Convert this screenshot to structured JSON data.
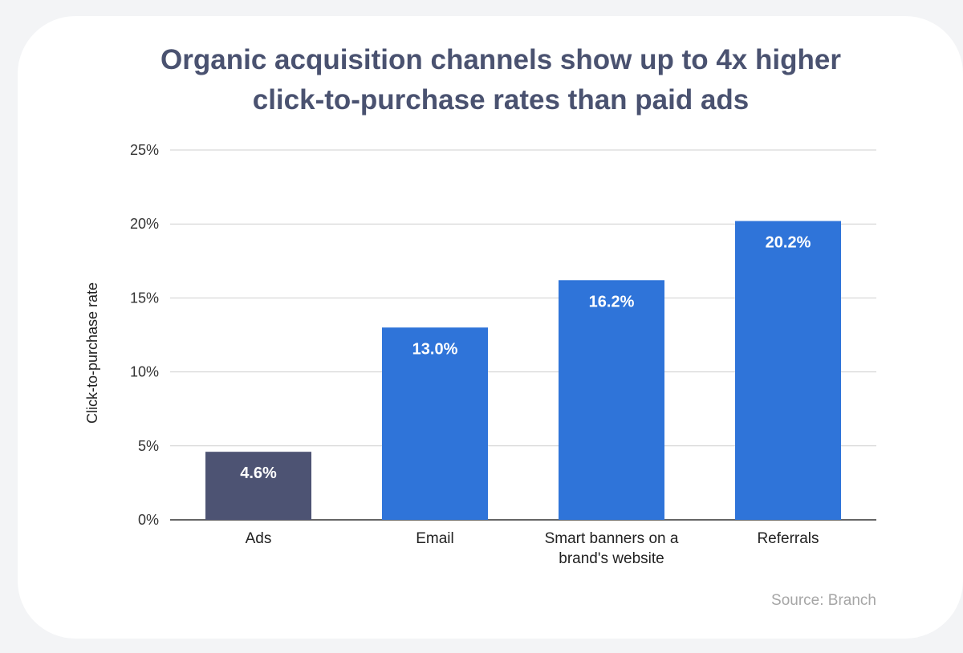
{
  "chart_data": {
    "type": "bar",
    "title_parts": [
      "Organic acquisition channels show up to ",
      "4x higher",
      "click-to-purchase rates than paid ads"
    ],
    "categories": [
      [
        "Ads"
      ],
      [
        "Email"
      ],
      [
        "Smart banners on a",
        "brand's website"
      ],
      [
        "Referrals"
      ]
    ],
    "values": [
      4.6,
      13.0,
      16.2,
      20.2
    ],
    "data_labels": [
      "4.6%",
      "13.0%",
      "16.2%",
      "20.2%"
    ],
    "bar_colors": [
      "#4d5373",
      "#2f74d9",
      "#2f74d9",
      "#2f74d9"
    ],
    "ylabel": "Click-to-purchase rate",
    "xlabel": "",
    "ylim": [
      0,
      25
    ],
    "yticks": [
      0,
      5,
      10,
      15,
      20,
      25
    ],
    "ytick_labels": [
      "0%",
      "5%",
      "10%",
      "15%",
      "20%",
      "25%"
    ],
    "grid": true,
    "legend": "none"
  },
  "source": "Source: Branch"
}
